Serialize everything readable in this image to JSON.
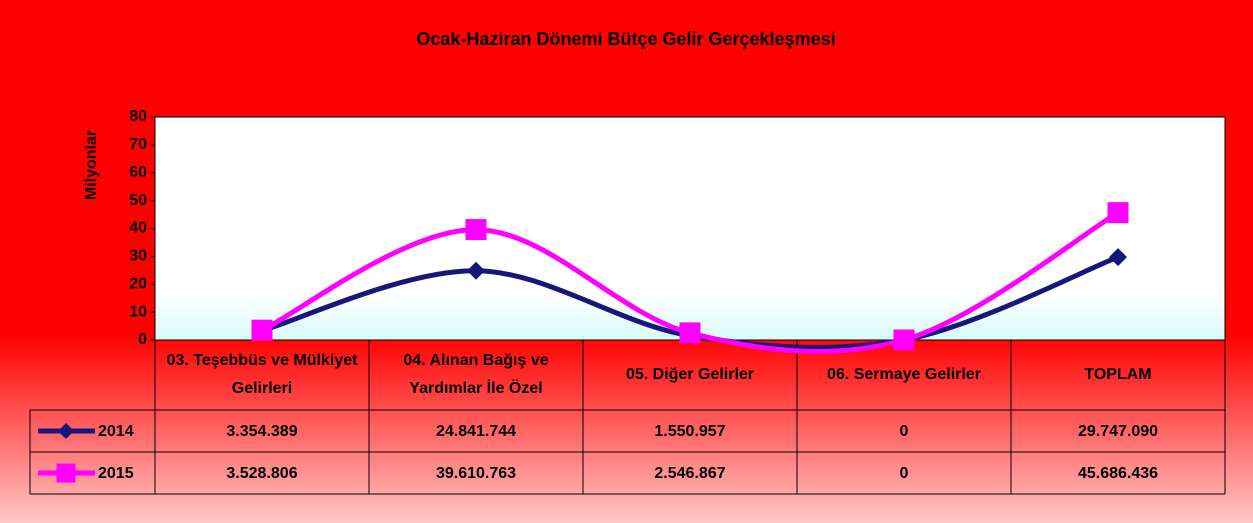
{
  "chart_data": {
    "type": "line",
    "title": "Ocak-Haziran Dönemi Bütçe Gelir Gerçekleşmesi",
    "y_label": "Milyonlar",
    "categories": [
      "03. Teşebbüs ve Mülkiyet Gelirleri",
      "04. Alınan Bağış ve Yardımlar İle Özel",
      "05. Diğer Gelirler",
      "06. Sermaye Gelirler",
      "TOPLAM"
    ],
    "series": [
      {
        "name": "2014",
        "color": "#17177a",
        "marker": "diamond",
        "values": [
          3.354389,
          24.841744,
          1.550957,
          0,
          29.74709
        ],
        "value_labels": [
          "3.354.389",
          "24.841.744",
          "1.550.957",
          "0",
          "29.747.090"
        ]
      },
      {
        "name": "2015",
        "color": "#ff00ff",
        "marker": "square",
        "values": [
          3.528806,
          39.610763,
          2.546867,
          0,
          45.686436
        ],
        "value_labels": [
          "3.528.806",
          "39.610.763",
          "2.546.867",
          "0",
          "45.686.436"
        ]
      }
    ],
    "ylim": [
      0,
      80
    ],
    "yticks": [
      0,
      10,
      20,
      30,
      40,
      50,
      60,
      70,
      80
    ],
    "smooth": true
  }
}
